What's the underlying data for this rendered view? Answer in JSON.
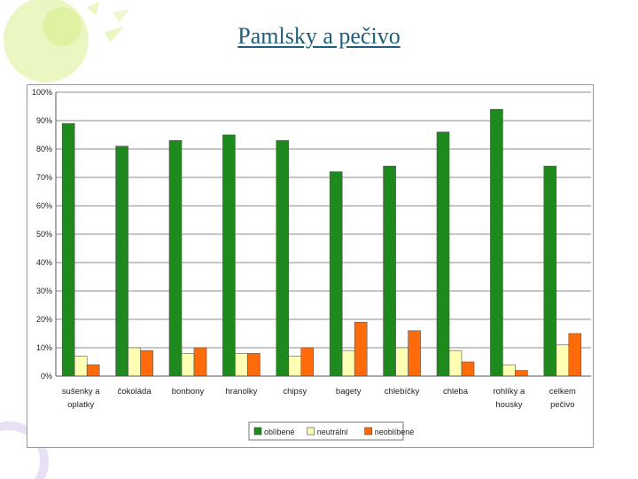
{
  "slide": {
    "title": "Pamlsky a pečivo"
  },
  "colors": {
    "background_accent": "#e4f3b0",
    "title": "#1f5f7a"
  },
  "chart_data": {
    "type": "bar",
    "categories": [
      "sušenky a oplatky",
      "čokoláda",
      "bonbony",
      "hranolky",
      "chipsy",
      "bagety",
      "chlebíčky",
      "chleba",
      "rohlíky a housky",
      "celkem pečivo"
    ],
    "category_lines": [
      [
        "sušenky a",
        "oplatky"
      ],
      [
        "čokoláda"
      ],
      [
        "bonbony"
      ],
      [
        "hranolky"
      ],
      [
        "chipsy"
      ],
      [
        "bagety"
      ],
      [
        "chlebíčky"
      ],
      [
        "chleba"
      ],
      [
        "rohlíky a",
        "housky"
      ],
      [
        "celkem",
        "pečivo"
      ]
    ],
    "series": [
      {
        "name": "oblíbené",
        "color": "#1e8a1e",
        "values": [
          89,
          81,
          83,
          85,
          83,
          72,
          74,
          86,
          94,
          74
        ]
      },
      {
        "name": "neutrální",
        "color": "#ffffb3",
        "values": [
          7,
          10,
          8,
          8,
          7,
          9,
          10,
          9,
          4,
          11
        ]
      },
      {
        "name": "neoblíbené",
        "color": "#ff6a0a",
        "values": [
          4,
          9,
          10,
          8,
          10,
          19,
          16,
          5,
          2,
          15
        ]
      }
    ],
    "yticks": [
      "0%",
      "10%",
      "20%",
      "30%",
      "40%",
      "50%",
      "60%",
      "70%",
      "80%",
      "90%",
      "100%"
    ],
    "ylim": [
      0,
      100
    ],
    "grid": true,
    "legend_position": "bottom"
  }
}
